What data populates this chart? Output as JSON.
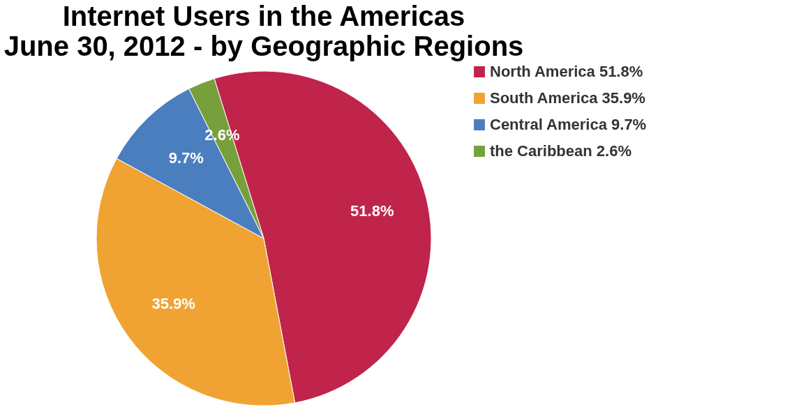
{
  "chart_data": {
    "type": "pie",
    "title": "Internet Users in the Americas",
    "subtitle": "June 30, 2012 - by Geographic Regions",
    "categories": [
      "North America 51.8%",
      "South America 35.9%",
      "Central America 9.7%",
      "the Caribbean 2.6%"
    ],
    "values": [
      51.8,
      35.9,
      9.7,
      2.6
    ],
    "colors": [
      "#c0244a",
      "#f0a332",
      "#4a7ebf",
      "#77a03c"
    ],
    "value_labels": [
      "51.8%",
      "35.9%",
      "9.7%",
      "2.6%"
    ],
    "legend": "right"
  }
}
